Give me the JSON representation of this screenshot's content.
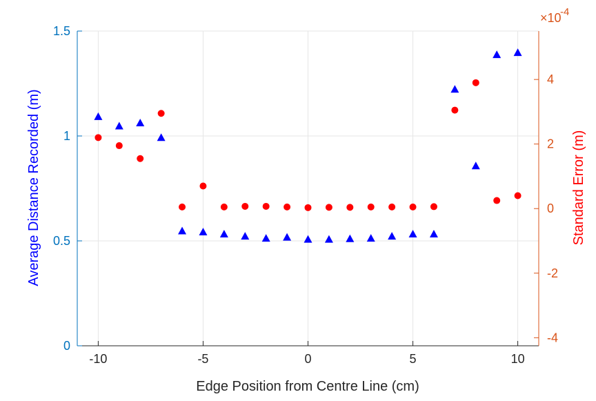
{
  "chart_data": {
    "type": "scatter",
    "xlabel": "Edge Position from Centre Line (cm)",
    "ylabel": "Average Distance Recorded (m)",
    "y2label": "Standard Error (m)",
    "y2_exponent_label": "×10",
    "y2_exponent_power": "-4",
    "xlim": [
      -11,
      11
    ],
    "ylim": [
      0,
      1.5
    ],
    "y2lim": [
      -4.25,
      5.5
    ],
    "x_ticks": [
      -10,
      -5,
      0,
      5,
      10
    ],
    "x_tick_labels": [
      "-10",
      "-5",
      "0",
      "5",
      "10"
    ],
    "y_ticks": [
      0,
      0.5,
      1,
      1.5
    ],
    "y_tick_labels": [
      "0",
      "0.5",
      "1",
      "1.5"
    ],
    "y2_ticks": [
      -4,
      -2,
      0,
      2,
      4
    ],
    "y2_tick_labels": [
      "-4",
      "-2",
      "0",
      "2",
      "4"
    ],
    "grid": true,
    "colors": {
      "left_axis": "#0072BD",
      "right_axis": "#D95319",
      "triangles": "#0000FF",
      "circles": "#FF0000",
      "grid": "#E6E6E6",
      "xaxis": "#262626"
    },
    "series": [
      {
        "axis": "left",
        "marker": "triangle",
        "x": [
          -10,
          -9,
          -8,
          -7,
          -6,
          -5,
          -4,
          -3,
          -2,
          -1,
          0,
          1,
          2,
          3,
          4,
          5,
          6,
          7,
          8,
          9,
          10
        ],
        "y": [
          1.09,
          1.045,
          1.06,
          0.99,
          0.545,
          0.54,
          0.53,
          0.52,
          0.51,
          0.515,
          0.505,
          0.505,
          0.508,
          0.51,
          0.52,
          0.53,
          0.53,
          1.22,
          0.855,
          1.385,
          1.395
        ]
      },
      {
        "axis": "right",
        "marker": "circle",
        "x": [
          -10,
          -9,
          -8,
          -7,
          -6,
          -5,
          -4,
          -3,
          -2,
          -1,
          0,
          1,
          2,
          3,
          4,
          5,
          6,
          7,
          8,
          9,
          10
        ],
        "y": [
          2.2,
          1.95,
          1.55,
          2.95,
          0.05,
          0.7,
          0.05,
          0.07,
          0.07,
          0.05,
          0.03,
          0.04,
          0.04,
          0.05,
          0.05,
          0.05,
          0.06,
          3.05,
          3.9,
          0.25,
          0.4
        ]
      }
    ]
  }
}
